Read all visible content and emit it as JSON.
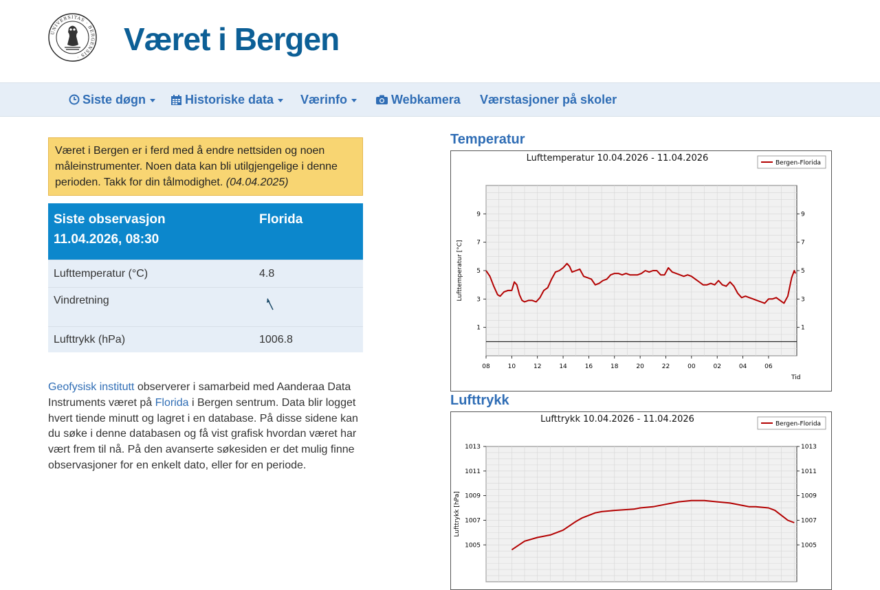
{
  "header": {
    "title": "Været i Bergen",
    "logo_text": "UNIVERSITAS BERGENSIS"
  },
  "nav": {
    "items": [
      {
        "label": "Siste døgn",
        "icon": "clock-icon",
        "dropdown": true
      },
      {
        "label": "Historiske data",
        "icon": "calendar-icon",
        "dropdown": true
      },
      {
        "label": "Værinfo",
        "icon": "",
        "dropdown": true
      },
      {
        "label": "Webkamera",
        "icon": "camera-icon",
        "dropdown": false
      },
      {
        "label": "Værstasjoner på skoler",
        "icon": "",
        "dropdown": false
      }
    ]
  },
  "notice": {
    "text": "Været i Bergen er i ferd med å endre nettsiden og noen måleinstrumenter. Noen data kan bli utilgjengelige i denne perioden. Takk for din tålmodighet.",
    "date": "(04.04.2025)"
  },
  "observation": {
    "header_line1": "Siste observasjon",
    "header_line2": "11.04.2026, 08:30",
    "station": "Florida",
    "rows": [
      {
        "label": "Lufttemperatur (°C)",
        "value": "4.8"
      },
      {
        "label": "Vindretning",
        "value": "",
        "icon": "wind-direction-arrow-icon"
      },
      {
        "label": "Lufttrykk (hPa)",
        "value": "1006.8"
      }
    ]
  },
  "intro": {
    "link1": "Geofysisk institutt",
    "text1": " observerer i samarbeid med Aanderaa Data Instruments været på ",
    "link2": "Florida",
    "text2": " i Bergen sentrum. Data blir logget hvert tiende minutt og lagret i en database. På disse sidene kan du søke i denne databasen og få vist grafisk hvordan været har vært frem til nå. På den avanserte søkesiden er det mulig finne observasjoner for en enkelt dato, eller for en periode."
  },
  "colors": {
    "title": "#0c5f96",
    "link": "#2f6db5",
    "navbar_bg": "#e6eef7",
    "table_header": "#0c87cc",
    "notice_bg": "#f8d572",
    "series": "#b30000"
  },
  "charts": {
    "temperature": {
      "section_title": "Temperatur"
    },
    "pressure": {
      "section_title": "Lufttrykk"
    }
  },
  "chart_data": [
    {
      "type": "line",
      "title": "Lufttemperatur 10.04.2026 - 11.04.2026",
      "ylabel": "Lufttemperatur [°C]",
      "xlabel": "Tid",
      "legend": "top-right",
      "grid": true,
      "ylim": [
        -1,
        11
      ],
      "yticks": [
        1,
        3,
        5,
        7,
        9
      ],
      "xlim": [
        8,
        32.2
      ],
      "xticks": [
        "08",
        "10",
        "12",
        "14",
        "16",
        "18",
        "20",
        "22",
        "00",
        "02",
        "04",
        "06"
      ],
      "series": [
        {
          "name": "Bergen-Florida",
          "x": [
            8.0,
            8.3,
            8.6,
            8.9,
            9.1,
            9.4,
            9.7,
            10.0,
            10.2,
            10.4,
            10.6,
            10.8,
            11.0,
            11.3,
            11.6,
            11.9,
            12.2,
            12.5,
            12.8,
            13.1,
            13.4,
            13.7,
            14.0,
            14.3,
            14.5,
            14.7,
            15.0,
            15.3,
            15.6,
            15.9,
            16.2,
            16.5,
            16.8,
            17.1,
            17.4,
            17.7,
            18.0,
            18.3,
            18.6,
            18.9,
            19.2,
            19.5,
            19.8,
            20.1,
            20.4,
            20.7,
            21.0,
            21.3,
            21.6,
            21.9,
            22.2,
            22.5,
            22.8,
            23.1,
            23.4,
            23.7,
            24.0,
            24.3,
            24.6,
            24.9,
            25.2,
            25.5,
            25.8,
            26.1,
            26.4,
            26.7,
            27.0,
            27.3,
            27.6,
            27.9,
            28.2,
            28.5,
            28.8,
            29.1,
            29.4,
            29.7,
            30.0,
            30.3,
            30.6,
            30.9,
            31.2,
            31.5,
            31.8,
            32.0,
            32.1
          ],
          "values": [
            5.0,
            4.6,
            3.9,
            3.3,
            3.2,
            3.5,
            3.6,
            3.6,
            4.2,
            4.0,
            3.3,
            2.9,
            2.8,
            2.9,
            2.9,
            2.8,
            3.1,
            3.6,
            3.8,
            4.4,
            4.9,
            5.0,
            5.2,
            5.5,
            5.3,
            4.9,
            5.0,
            5.1,
            4.6,
            4.5,
            4.4,
            4.0,
            4.1,
            4.3,
            4.4,
            4.7,
            4.8,
            4.8,
            4.7,
            4.8,
            4.7,
            4.7,
            4.7,
            4.8,
            5.0,
            4.9,
            5.0,
            5.0,
            4.7,
            4.7,
            5.2,
            4.9,
            4.8,
            4.7,
            4.6,
            4.7,
            4.6,
            4.4,
            4.2,
            4.0,
            4.0,
            4.1,
            4.0,
            4.3,
            4.0,
            3.9,
            4.2,
            3.9,
            3.4,
            3.1,
            3.2,
            3.1,
            3.0,
            2.9,
            2.8,
            2.7,
            3.0,
            3.0,
            3.1,
            2.9,
            2.7,
            3.2,
            4.5,
            5.0,
            4.8
          ]
        }
      ]
    },
    {
      "type": "line",
      "title": "Lufttrykk 10.04.2026 - 11.04.2026",
      "ylabel": "Lufttrykk [hPa]",
      "legend": "top-right",
      "grid": true,
      "ylim": [
        1002,
        1013
      ],
      "yticks": [
        1005,
        1007,
        1009,
        1011,
        1013
      ],
      "xlim": [
        8,
        32.2
      ],
      "series": [
        {
          "name": "Bergen-Florida",
          "x": [
            10.0,
            11.0,
            12.0,
            13.0,
            14.0,
            15.0,
            15.5,
            16.5,
            17.0,
            18.0,
            19.5,
            20.0,
            21.0,
            22.0,
            23.0,
            24.0,
            24.5,
            25.0,
            26.0,
            27.0,
            28.0,
            28.5,
            29.0,
            30.0,
            30.5,
            31.0,
            31.5,
            32.0
          ],
          "values": [
            1004.6,
            1005.3,
            1005.6,
            1005.8,
            1006.2,
            1006.9,
            1007.2,
            1007.6,
            1007.7,
            1007.8,
            1007.9,
            1008.0,
            1008.1,
            1008.3,
            1008.5,
            1008.6,
            1008.6,
            1008.6,
            1008.5,
            1008.4,
            1008.2,
            1008.1,
            1008.1,
            1008.0,
            1007.8,
            1007.4,
            1007.0,
            1006.8
          ]
        }
      ]
    }
  ]
}
